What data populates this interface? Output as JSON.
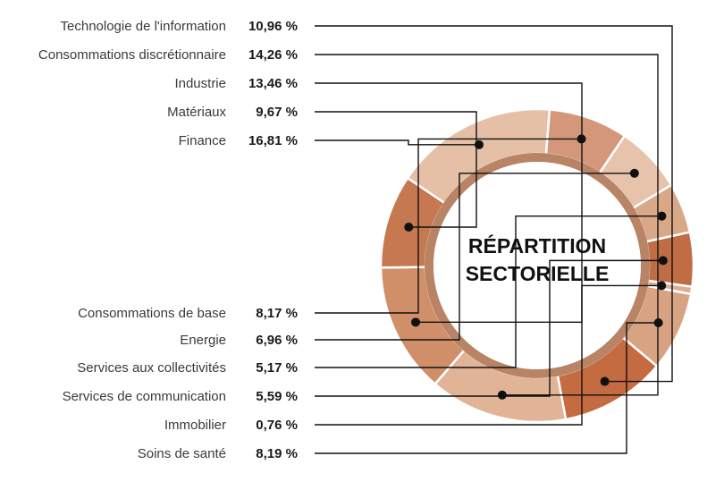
{
  "chart_data": {
    "type": "pie",
    "title": "RÉPARTITION SECTORIELLE",
    "categories": [
      "Technologie de l'information",
      "Consommations discrétionnaire",
      "Industrie",
      "Matériaux",
      "Finance",
      "Consommations de base",
      "Energie",
      "Services aux collectivités",
      "Services de communication",
      "Immobilier",
      "Soins de santé"
    ],
    "values": [
      10.96,
      14.26,
      13.46,
      9.67,
      16.81,
      8.17,
      6.96,
      5.17,
      5.59,
      0.76,
      8.19
    ],
    "value_labels": [
      "10,96 %",
      "14,26 %",
      "13,46 %",
      "9,67 %",
      "16,81 %",
      "8,17 %",
      "6,96 %",
      "5,17 %",
      "5,59 %",
      "0,76 %",
      "8,19 %"
    ],
    "legend": "left"
  },
  "title_lines": [
    "RÉPARTITION",
    "SECTORIELLE"
  ],
  "colors": {
    "palette": [
      "#c56b42",
      "#e1b497",
      "#d08f68",
      "#c67850",
      "#e5c0a6",
      "#d4977b",
      "#e8c3ab",
      "#d9a888",
      "#c06d45",
      "#dbb095",
      "#d7a383"
    ],
    "inner_ring": "#b98465",
    "leader": "#111111"
  }
}
